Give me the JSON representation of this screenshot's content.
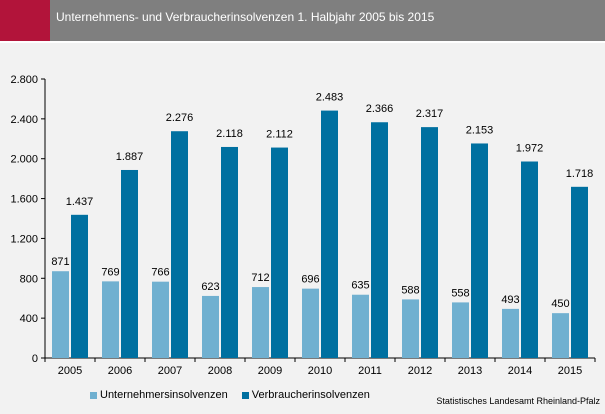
{
  "header": {
    "title": "Unternehmens- und Verbraucherinsolvenzen 1. Halbjahr 2005 bis 2015",
    "accent_color": "#b2143a",
    "bar_color": "#7f7f7f"
  },
  "source": "Statistisches Landesamt Rheinland-Pfalz",
  "chart_data": {
    "type": "bar",
    "title": "Unternehmens- und Verbraucherinsolvenzen 1. Halbjahr 2005 bis 2015",
    "categories": [
      "2005",
      "2006",
      "2007",
      "2008",
      "2009",
      "2010",
      "2011",
      "2012",
      "2013",
      "2014",
      "2015"
    ],
    "series": [
      {
        "name": "Unternehmersinsolvenzen",
        "color": "#70b0d0",
        "values": [
          871,
          769,
          766,
          623,
          712,
          696,
          635,
          588,
          558,
          493,
          450
        ],
        "labels": [
          "871",
          "769",
          "766",
          "623",
          "712",
          "696",
          "635",
          "588",
          "558",
          "493",
          "450"
        ]
      },
      {
        "name": "Verbraucherinsolvenzen",
        "color": "#0070a0",
        "values": [
          1437,
          1887,
          2276,
          2118,
          2112,
          2483,
          2366,
          2317,
          2153,
          1972,
          1718
        ],
        "labels": [
          "1.437",
          "1.887",
          "2.276",
          "2.118",
          "2.112",
          "2.483",
          "2.366",
          "2.317",
          "2.153",
          "1.972",
          "1.718"
        ]
      }
    ],
    "ylim": [
      0,
      2800
    ],
    "yticks": [
      0,
      400,
      800,
      1200,
      1600,
      2000,
      2400,
      2800
    ],
    "ytick_labels": [
      "0",
      "400",
      "800",
      "1.200",
      "1.600",
      "2.000",
      "2.400",
      "2.800"
    ],
    "grid": false,
    "legend": "bottom-left"
  }
}
